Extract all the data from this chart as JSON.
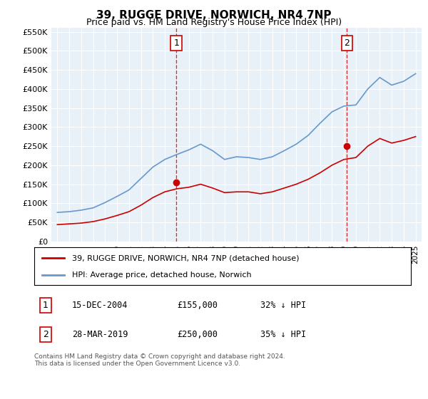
{
  "title": "39, RUGGE DRIVE, NORWICH, NR4 7NP",
  "subtitle": "Price paid vs. HM Land Registry's House Price Index (HPI)",
  "legend_line1": "39, RUGGE DRIVE, NORWICH, NR4 7NP (detached house)",
  "legend_line2": "HPI: Average price, detached house, Norwich",
  "annotation1_label": "1",
  "annotation1_date": "15-DEC-2004",
  "annotation1_price": "£155,000",
  "annotation1_hpi": "32% ↓ HPI",
  "annotation2_label": "2",
  "annotation2_date": "28-MAR-2019",
  "annotation2_price": "£250,000",
  "annotation2_hpi": "35% ↓ HPI",
  "footer": "Contains HM Land Registry data © Crown copyright and database right 2024.\nThis data is licensed under the Open Government Licence v3.0.",
  "red_color": "#cc0000",
  "blue_color": "#6699cc",
  "background_color": "#e8f0f8",
  "ylim": [
    0,
    560000
  ],
  "yticks": [
    0,
    50000,
    100000,
    150000,
    200000,
    250000,
    300000,
    350000,
    400000,
    450000,
    500000,
    550000
  ],
  "ytick_labels": [
    "£0",
    "£50K",
    "£100K",
    "£150K",
    "£200K",
    "£250K",
    "£300K",
    "£350K",
    "£400K",
    "£450K",
    "£500K",
    "£550K"
  ],
  "xstart_year": 1995,
  "xend_year": 2025,
  "purchase1_year": 2004.96,
  "purchase1_value": 155000,
  "purchase2_year": 2019.24,
  "purchase2_value": 250000,
  "hpi_years": [
    1995,
    1996,
    1997,
    1998,
    1999,
    2000,
    2001,
    2002,
    2003,
    2004,
    2005,
    2006,
    2007,
    2008,
    2009,
    2010,
    2011,
    2012,
    2013,
    2014,
    2015,
    2016,
    2017,
    2018,
    2019,
    2020,
    2021,
    2022,
    2023,
    2024,
    2025
  ],
  "hpi_values": [
    76000,
    78000,
    82000,
    88000,
    102000,
    118000,
    135000,
    165000,
    195000,
    215000,
    228000,
    240000,
    255000,
    238000,
    215000,
    222000,
    220000,
    215000,
    222000,
    238000,
    255000,
    278000,
    310000,
    340000,
    355000,
    358000,
    400000,
    430000,
    410000,
    420000,
    440000
  ],
  "red_years": [
    1995,
    1996,
    1997,
    1998,
    1999,
    2000,
    2001,
    2002,
    2003,
    2004,
    2005,
    2006,
    2007,
    2008,
    2009,
    2010,
    2011,
    2012,
    2013,
    2014,
    2015,
    2016,
    2017,
    2018,
    2019,
    2020,
    2021,
    2022,
    2023,
    2024,
    2025
  ],
  "red_values": [
    44000,
    46000,
    48000,
    52000,
    59000,
    68000,
    78000,
    95000,
    115000,
    130000,
    138000,
    142000,
    150000,
    140000,
    128000,
    130000,
    130000,
    125000,
    130000,
    140000,
    150000,
    163000,
    180000,
    200000,
    215000,
    220000,
    250000,
    270000,
    258000,
    265000,
    275000
  ]
}
